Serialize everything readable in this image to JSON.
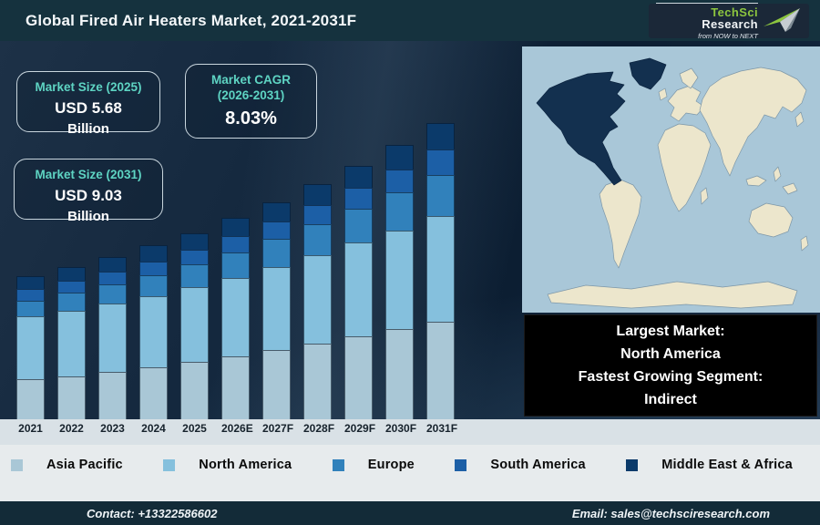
{
  "header": {
    "title": "Global Fired Air Heaters Market, 2021-2031F",
    "logo": {
      "brand_primary": "TechSci",
      "brand_secondary": "Research",
      "tagline": "from NOW to NEXT",
      "brand_green": "#8dc63f"
    }
  },
  "stats": {
    "box_2025": {
      "label": "Market Size (2025)",
      "value": "USD 5.68",
      "unit": "Billion"
    },
    "box_cagr": {
      "label_line1": "Market CAGR",
      "label_line2": "(2026-2031)",
      "value": "8.03%"
    },
    "box_2031": {
      "label": "Market Size (2031)",
      "value": "USD 9.03",
      "unit": "Billion"
    }
  },
  "highlight": {
    "line1": "Largest Market:",
    "line2": "North America",
    "line3": "Fastest Growing Segment:",
    "line4": "Indirect"
  },
  "chart_data": {
    "type": "bar",
    "stacked": true,
    "title": "Global Fired Air Heaters Market, 2021-2031F",
    "unit": "USD Billion",
    "categories": [
      "2021",
      "2022",
      "2023",
      "2024",
      "2025",
      "2026E",
      "2027F",
      "2028F",
      "2029F",
      "2030F",
      "2031F"
    ],
    "series": [
      {
        "name": "Asia Pacific",
        "color": "#a9c7d6",
        "values": [
          1.22,
          1.32,
          1.44,
          1.59,
          1.76,
          1.93,
          2.12,
          2.31,
          2.52,
          2.74,
          2.98
        ]
      },
      {
        "name": "North America",
        "color": "#85c0dd",
        "values": [
          1.91,
          2.0,
          2.08,
          2.17,
          2.27,
          2.39,
          2.52,
          2.69,
          2.86,
          3.01,
          3.21
        ]
      },
      {
        "name": "Europe",
        "color": "#3181bb",
        "values": [
          0.48,
          0.53,
          0.59,
          0.64,
          0.68,
          0.77,
          0.86,
          0.95,
          1.04,
          1.17,
          1.26
        ]
      },
      {
        "name": "South America",
        "color": "#1c5fa6",
        "values": [
          0.35,
          0.37,
          0.4,
          0.42,
          0.47,
          0.5,
          0.54,
          0.59,
          0.63,
          0.7,
          0.77
        ]
      },
      {
        "name": "Middle East & Africa",
        "color": "#0b3a6a",
        "values": [
          0.39,
          0.42,
          0.45,
          0.48,
          0.5,
          0.54,
          0.58,
          0.63,
          0.68,
          0.74,
          0.81
        ]
      }
    ],
    "totals": [
      4.35,
      4.64,
      4.96,
      5.3,
      5.68,
      6.13,
      6.62,
      7.17,
      7.73,
      8.36,
      9.03
    ],
    "anchors": {
      "market_size_2025": 5.68,
      "market_size_2031": 9.03,
      "cagr_2026_2031_pct": 8.03
    },
    "legend_position": "bottom",
    "grid": false,
    "values_estimated_from_image": true
  },
  "map": {
    "highlight_region": "North America",
    "ocean_color": "#a9c7d8",
    "land_color": "#ece6cc",
    "highlight_color": "#13304f"
  },
  "footer": {
    "contact": "Contact: +13322586602",
    "email": "Email: sales@techsciresearch.com"
  }
}
